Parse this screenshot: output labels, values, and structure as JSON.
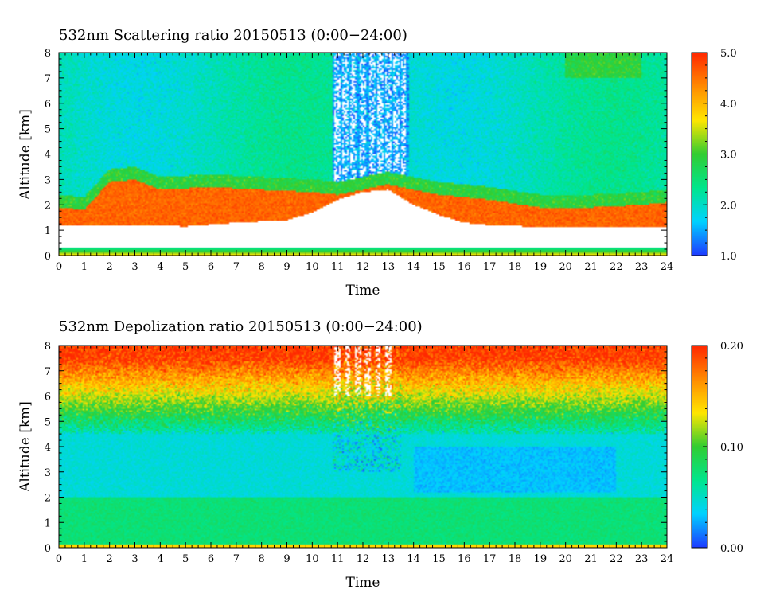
{
  "chart_data": [
    {
      "type": "heatmap",
      "title": "532nm Scattering ratio  20150513 (0:00−24:00)",
      "xlabel": "Time",
      "ylabel": "Altitude [km]",
      "xlim": [
        0,
        24
      ],
      "ylim": [
        0,
        8
      ],
      "x_ticks": [
        "0",
        "1",
        "2",
        "3",
        "4",
        "5",
        "6",
        "7",
        "8",
        "9",
        "10",
        "11",
        "12",
        "13",
        "14",
        "15",
        "16",
        "17",
        "18",
        "19",
        "20",
        "21",
        "22",
        "23",
        "24"
      ],
      "y_ticks": [
        "0",
        "1",
        "2",
        "3",
        "4",
        "5",
        "6",
        "7",
        "8"
      ],
      "colorbar": {
        "range": [
          1.0,
          5.0
        ],
        "tick_labels": [
          "5.0",
          "4.0",
          "3.0",
          "2.0",
          "1.0"
        ],
        "tick_values": [
          5.0,
          4.0,
          3.0,
          2.0,
          1.0
        ]
      },
      "colormap": [
        "#1e3cff",
        "#00d2ff",
        "#00e68c",
        "#32cd32",
        "#ffe600",
        "#ff8c00",
        "#ff2800"
      ],
      "features": {
        "aerosol_layer_top_km": [
          {
            "t": 0,
            "v": 1.9
          },
          {
            "t": 1,
            "v": 1.8
          },
          {
            "t": 2,
            "v": 2.9
          },
          {
            "t": 3,
            "v": 3.0
          },
          {
            "t": 4,
            "v": 2.6
          },
          {
            "t": 6,
            "v": 2.7
          },
          {
            "t": 8,
            "v": 2.6
          },
          {
            "t": 10,
            "v": 2.5
          },
          {
            "t": 11,
            "v": 2.4
          },
          {
            "t": 13,
            "v": 2.8
          },
          {
            "t": 14,
            "v": 2.6
          },
          {
            "t": 15,
            "v": 2.4
          },
          {
            "t": 17,
            "v": 2.2
          },
          {
            "t": 19,
            "v": 1.9
          },
          {
            "t": 21,
            "v": 1.9
          },
          {
            "t": 23,
            "v": 2.0
          },
          {
            "t": 24,
            "v": 2.1
          }
        ],
        "aerosol_layer_bottom_km": [
          {
            "t": 0,
            "v": 1.2
          },
          {
            "t": 3,
            "v": 1.2
          },
          {
            "t": 5,
            "v": 1.15
          },
          {
            "t": 7,
            "v": 1.3
          },
          {
            "t": 9,
            "v": 1.4
          },
          {
            "t": 10,
            "v": 1.7
          },
          {
            "t": 11,
            "v": 2.2
          },
          {
            "t": 12,
            "v": 2.5
          },
          {
            "t": 13,
            "v": 2.6
          },
          {
            "t": 14,
            "v": 2.0
          },
          {
            "t": 15,
            "v": 1.6
          },
          {
            "t": 16,
            "v": 1.3
          },
          {
            "t": 17,
            "v": 1.2
          },
          {
            "t": 20,
            "v": 1.1
          },
          {
            "t": 24,
            "v": 1.1
          }
        ],
        "no_data_below_km": 1.2,
        "surface_band_km": 0.3,
        "noise_columns_hours": [
          11.0,
          11.3,
          11.6,
          12.0,
          12.4,
          12.7,
          13.0,
          13.3,
          13.6
        ],
        "background_ratio": 2.1
      }
    },
    {
      "type": "heatmap",
      "title": "532nm Depolization ratio  20150513 (0:00−24:00)",
      "xlabel": "Time",
      "ylabel": "Altitude [km]",
      "xlim": [
        0,
        24
      ],
      "ylim": [
        0,
        8
      ],
      "x_ticks": [
        "0",
        "1",
        "2",
        "3",
        "4",
        "5",
        "6",
        "7",
        "8",
        "9",
        "10",
        "11",
        "12",
        "13",
        "14",
        "15",
        "16",
        "17",
        "18",
        "19",
        "20",
        "21",
        "22",
        "23",
        "24"
      ],
      "y_ticks": [
        "0",
        "1",
        "2",
        "3",
        "4",
        "5",
        "6",
        "7",
        "8"
      ],
      "colorbar": {
        "range": [
          0.0,
          0.2
        ],
        "tick_labels": [
          "0.20",
          "0.10",
          "0.00"
        ],
        "tick_values": [
          0.2,
          0.1,
          0.0
        ]
      },
      "colormap": [
        "#1e3cff",
        "#00d2ff",
        "#00e68c",
        "#32cd32",
        "#ffe600",
        "#ff8c00",
        "#ff2800"
      ],
      "features": {
        "high_ratio_above_km": 6.0,
        "mid_band_km": [
          2.5,
          4.5
        ],
        "boundary_layer_top_km": 2.0,
        "noise_columns_hours": [
          11.0,
          11.4,
          11.8,
          12.2,
          12.6,
          13.0
        ],
        "surface_band_km": 0.1
      }
    }
  ]
}
